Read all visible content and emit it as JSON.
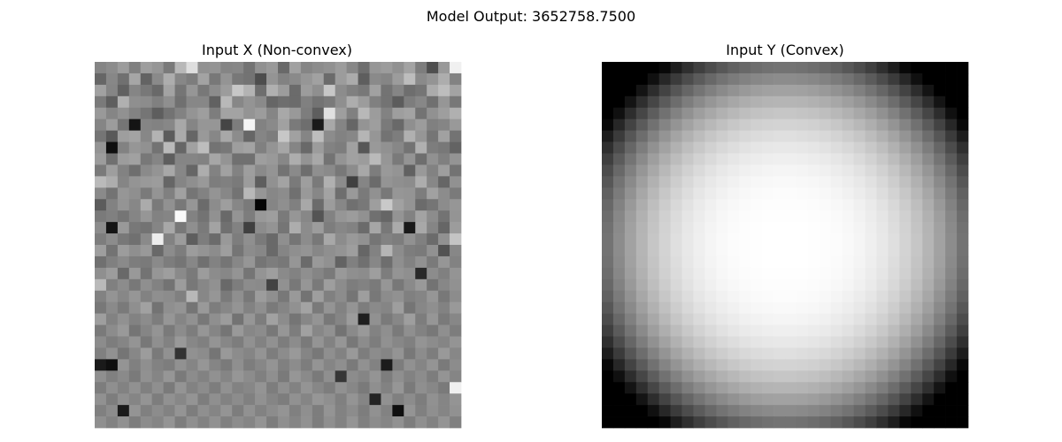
{
  "figure": {
    "suptitle": "Model Output: 3652758.7500"
  },
  "chart_data": [
    {
      "type": "heatmap",
      "title": "Input X (Non-convex)",
      "colormap": "gray",
      "rows": 32,
      "cols": 32,
      "axes_visible": false,
      "value_range": [
        0,
        1
      ],
      "values": [
        [
          0.52,
          0.55,
          0.61,
          0.5,
          0.62,
          0.59,
          0.48,
          0.72,
          0.87,
          0.57,
          0.58,
          0.52,
          0.53,
          0.45,
          0.57,
          0.6,
          0.41,
          0.63,
          0.52,
          0.55,
          0.57,
          0.61,
          0.53,
          0.43,
          0.59,
          0.61,
          0.57,
          0.64,
          0.49,
          0.31,
          0.6,
          0.94
        ],
        [
          0.4,
          0.53,
          0.44,
          0.65,
          0.39,
          0.54,
          0.68,
          0.53,
          0.49,
          0.64,
          0.47,
          0.58,
          0.47,
          0.45,
          0.3,
          0.58,
          0.51,
          0.54,
          0.59,
          0.63,
          0.42,
          0.61,
          0.67,
          0.37,
          0.54,
          0.52,
          0.61,
          0.74,
          0.54,
          0.58,
          0.68,
          0.51
        ],
        [
          0.63,
          0.52,
          0.38,
          0.52,
          0.47,
          0.41,
          0.64,
          0.46,
          0.59,
          0.47,
          0.55,
          0.61,
          0.78,
          0.7,
          0.43,
          0.69,
          0.61,
          0.42,
          0.61,
          0.56,
          0.78,
          0.55,
          0.5,
          0.47,
          0.63,
          0.45,
          0.52,
          0.43,
          0.46,
          0.67,
          0.74,
          0.64
        ],
        [
          0.48,
          0.37,
          0.69,
          0.56,
          0.55,
          0.5,
          0.56,
          0.44,
          0.53,
          0.53,
          0.38,
          0.72,
          0.53,
          0.58,
          0.54,
          0.4,
          0.43,
          0.42,
          0.5,
          0.45,
          0.48,
          0.56,
          0.68,
          0.61,
          0.5,
          0.45,
          0.36,
          0.49,
          0.53,
          0.44,
          0.59,
          0.47
        ],
        [
          0.6,
          0.52,
          0.57,
          0.51,
          0.46,
          0.37,
          0.45,
          0.51,
          0.58,
          0.62,
          0.49,
          0.64,
          0.64,
          0.58,
          0.61,
          0.52,
          0.66,
          0.6,
          0.49,
          0.37,
          0.88,
          0.62,
          0.5,
          0.72,
          0.61,
          0.51,
          0.62,
          0.64,
          0.45,
          0.57,
          0.62,
          0.69
        ],
        [
          0.52,
          0.61,
          0.46,
          0.08,
          0.52,
          0.51,
          0.53,
          0.66,
          0.52,
          0.59,
          0.59,
          0.27,
          0.49,
          0.96,
          0.51,
          0.54,
          0.63,
          0.48,
          0.43,
          0.1,
          0.66,
          0.52,
          0.4,
          0.58,
          0.62,
          0.48,
          0.41,
          0.56,
          0.61,
          0.5,
          0.52,
          0.6
        ],
        [
          0.46,
          0.35,
          0.62,
          0.64,
          0.53,
          0.7,
          0.36,
          0.67,
          0.4,
          0.6,
          0.53,
          0.66,
          0.55,
          0.4,
          0.52,
          0.49,
          0.78,
          0.63,
          0.52,
          0.74,
          0.55,
          0.51,
          0.53,
          0.71,
          0.59,
          0.45,
          0.49,
          0.69,
          0.59,
          0.46,
          0.63,
          0.45
        ],
        [
          0.58,
          0.06,
          0.51,
          0.59,
          0.57,
          0.45,
          0.73,
          0.4,
          0.63,
          0.74,
          0.45,
          0.47,
          0.62,
          0.64,
          0.5,
          0.58,
          0.65,
          0.52,
          0.41,
          0.61,
          0.51,
          0.49,
          0.63,
          0.34,
          0.6,
          0.57,
          0.53,
          0.45,
          0.69,
          0.49,
          0.47,
          0.39
        ],
        [
          0.61,
          0.44,
          0.61,
          0.63,
          0.47,
          0.52,
          0.37,
          0.52,
          0.52,
          0.51,
          0.65,
          0.58,
          0.44,
          0.44,
          0.62,
          0.6,
          0.53,
          0.68,
          0.58,
          0.66,
          0.45,
          0.58,
          0.63,
          0.61,
          0.73,
          0.59,
          0.48,
          0.58,
          0.43,
          0.57,
          0.5,
          0.58
        ],
        [
          0.48,
          0.62,
          0.51,
          0.43,
          0.54,
          0.58,
          0.66,
          0.53,
          0.4,
          0.68,
          0.51,
          0.63,
          0.51,
          0.62,
          0.54,
          0.58,
          0.45,
          0.54,
          0.43,
          0.56,
          0.54,
          0.47,
          0.55,
          0.66,
          0.49,
          0.6,
          0.58,
          0.38,
          0.6,
          0.51,
          0.62,
          0.45
        ],
        [
          0.73,
          0.68,
          0.52,
          0.58,
          0.6,
          0.61,
          0.4,
          0.52,
          0.56,
          0.6,
          0.49,
          0.5,
          0.48,
          0.61,
          0.37,
          0.57,
          0.64,
          0.48,
          0.62,
          0.48,
          0.69,
          0.55,
          0.25,
          0.52,
          0.42,
          0.58,
          0.56,
          0.55,
          0.68,
          0.53,
          0.4,
          0.57
        ],
        [
          0.54,
          0.45,
          0.59,
          0.56,
          0.48,
          0.58,
          0.5,
          0.63,
          0.46,
          0.51,
          0.58,
          0.53,
          0.45,
          0.72,
          0.59,
          0.53,
          0.55,
          0.44,
          0.6,
          0.53,
          0.64,
          0.43,
          0.6,
          0.48,
          0.57,
          0.47,
          0.59,
          0.58,
          0.49,
          0.63,
          0.55,
          0.48
        ],
        [
          0.36,
          0.51,
          0.58,
          0.53,
          0.67,
          0.48,
          0.57,
          0.47,
          0.59,
          0.42,
          0.55,
          0.62,
          0.53,
          0.48,
          0.02,
          0.52,
          0.56,
          0.5,
          0.66,
          0.42,
          0.61,
          0.53,
          0.44,
          0.47,
          0.62,
          0.79,
          0.63,
          0.58,
          0.42,
          0.46,
          0.55,
          0.59
        ],
        [
          0.48,
          0.5,
          0.46,
          0.52,
          0.59,
          0.51,
          0.52,
          0.98,
          0.51,
          0.45,
          0.57,
          0.41,
          0.58,
          0.49,
          0.6,
          0.62,
          0.48,
          0.59,
          0.53,
          0.33,
          0.51,
          0.59,
          0.61,
          0.57,
          0.44,
          0.4,
          0.58,
          0.51,
          0.64,
          0.55,
          0.45,
          0.58
        ],
        [
          0.55,
          0.08,
          0.6,
          0.47,
          0.45,
          0.52,
          0.66,
          0.47,
          0.56,
          0.48,
          0.64,
          0.44,
          0.51,
          0.25,
          0.55,
          0.58,
          0.46,
          0.68,
          0.55,
          0.61,
          0.49,
          0.53,
          0.51,
          0.42,
          0.65,
          0.47,
          0.67,
          0.1,
          0.66,
          0.52,
          0.4,
          0.61
        ],
        [
          0.49,
          0.55,
          0.47,
          0.44,
          0.54,
          0.93,
          0.51,
          0.61,
          0.37,
          0.49,
          0.42,
          0.6,
          0.49,
          0.56,
          0.48,
          0.41,
          0.56,
          0.46,
          0.55,
          0.47,
          0.66,
          0.55,
          0.6,
          0.57,
          0.46,
          0.51,
          0.49,
          0.57,
          0.5,
          0.42,
          0.57,
          0.77
        ],
        [
          0.62,
          0.45,
          0.61,
          0.56,
          0.6,
          0.41,
          0.55,
          0.49,
          0.61,
          0.58,
          0.55,
          0.62,
          0.46,
          0.55,
          0.53,
          0.41,
          0.52,
          0.56,
          0.58,
          0.53,
          0.56,
          0.58,
          0.62,
          0.4,
          0.51,
          0.71,
          0.55,
          0.49,
          0.48,
          0.57,
          0.32,
          0.53
        ],
        [
          0.44,
          0.5,
          0.54,
          0.49,
          0.48,
          0.54,
          0.49,
          0.46,
          0.53,
          0.44,
          0.51,
          0.46,
          0.53,
          0.59,
          0.46,
          0.49,
          0.47,
          0.59,
          0.42,
          0.6,
          0.57,
          0.39,
          0.5,
          0.44,
          0.53,
          0.43,
          0.56,
          0.51,
          0.57,
          0.48,
          0.59,
          0.51
        ],
        [
          0.56,
          0.61,
          0.41,
          0.6,
          0.45,
          0.59,
          0.62,
          0.54,
          0.48,
          0.61,
          0.55,
          0.53,
          0.58,
          0.46,
          0.58,
          0.62,
          0.54,
          0.51,
          0.56,
          0.52,
          0.48,
          0.6,
          0.56,
          0.55,
          0.62,
          0.49,
          0.58,
          0.56,
          0.16,
          0.55,
          0.5,
          0.58
        ],
        [
          0.73,
          0.5,
          0.55,
          0.47,
          0.56,
          0.51,
          0.45,
          0.61,
          0.47,
          0.53,
          0.57,
          0.41,
          0.49,
          0.55,
          0.54,
          0.26,
          0.57,
          0.47,
          0.59,
          0.48,
          0.62,
          0.55,
          0.49,
          0.51,
          0.48,
          0.59,
          0.47,
          0.54,
          0.6,
          0.45,
          0.53,
          0.57
        ],
        [
          0.51,
          0.58,
          0.53,
          0.59,
          0.51,
          0.56,
          0.55,
          0.5,
          0.72,
          0.53,
          0.59,
          0.48,
          0.56,
          0.47,
          0.61,
          0.56,
          0.47,
          0.6,
          0.45,
          0.62,
          0.5,
          0.55,
          0.46,
          0.62,
          0.47,
          0.55,
          0.57,
          0.5,
          0.52,
          0.59,
          0.47,
          0.55
        ],
        [
          0.47,
          0.54,
          0.48,
          0.56,
          0.63,
          0.45,
          0.56,
          0.58,
          0.46,
          0.6,
          0.49,
          0.53,
          0.58,
          0.51,
          0.56,
          0.48,
          0.52,
          0.57,
          0.64,
          0.48,
          0.58,
          0.51,
          0.58,
          0.49,
          0.54,
          0.52,
          0.62,
          0.46,
          0.53,
          0.56,
          0.51,
          0.6
        ],
        [
          0.62,
          0.51,
          0.57,
          0.51,
          0.55,
          0.49,
          0.59,
          0.52,
          0.57,
          0.47,
          0.56,
          0.61,
          0.45,
          0.59,
          0.49,
          0.63,
          0.55,
          0.46,
          0.53,
          0.58,
          0.47,
          0.52,
          0.61,
          0.12,
          0.57,
          0.48,
          0.53,
          0.62,
          0.49,
          0.59,
          0.48,
          0.53
        ],
        [
          0.48,
          0.55,
          0.6,
          0.46,
          0.52,
          0.58,
          0.48,
          0.55,
          0.49,
          0.59,
          0.52,
          0.46,
          0.6,
          0.53,
          0.55,
          0.47,
          0.59,
          0.49,
          0.63,
          0.53,
          0.57,
          0.45,
          0.54,
          0.6,
          0.51,
          0.56,
          0.48,
          0.56,
          0.51,
          0.47,
          0.56,
          0.49
        ],
        [
          0.55,
          0.49,
          0.52,
          0.58,
          0.47,
          0.56,
          0.51,
          0.6,
          0.53,
          0.5,
          0.58,
          0.53,
          0.49,
          0.57,
          0.51,
          0.57,
          0.49,
          0.55,
          0.48,
          0.58,
          0.51,
          0.59,
          0.47,
          0.55,
          0.49,
          0.57,
          0.53,
          0.5,
          0.58,
          0.55,
          0.52,
          0.58
        ],
        [
          0.5,
          0.57,
          0.46,
          0.53,
          0.61,
          0.48,
          0.57,
          0.2,
          0.57,
          0.55,
          0.46,
          0.6,
          0.55,
          0.52,
          0.58,
          0.49,
          0.55,
          0.6,
          0.52,
          0.47,
          0.56,
          0.51,
          0.6,
          0.49,
          0.55,
          0.52,
          0.58,
          0.47,
          0.55,
          0.49,
          0.6,
          0.53
        ],
        [
          0.1,
          0.06,
          0.58,
          0.5,
          0.56,
          0.51,
          0.49,
          0.57,
          0.52,
          0.59,
          0.52,
          0.48,
          0.56,
          0.49,
          0.53,
          0.58,
          0.5,
          0.55,
          0.49,
          0.58,
          0.52,
          0.56,
          0.48,
          0.57,
          0.51,
          0.11,
          0.49,
          0.57,
          0.52,
          0.58,
          0.48,
          0.55
        ],
        [
          0.56,
          0.5,
          0.54,
          0.48,
          0.57,
          0.52,
          0.59,
          0.48,
          0.55,
          0.51,
          0.57,
          0.52,
          0.59,
          0.55,
          0.5,
          0.56,
          0.48,
          0.59,
          0.54,
          0.48,
          0.56,
          0.21,
          0.55,
          0.52,
          0.58,
          0.49,
          0.56,
          0.51,
          0.55,
          0.49,
          0.58,
          0.52
        ],
        [
          0.49,
          0.56,
          0.51,
          0.57,
          0.5,
          0.56,
          0.48,
          0.58,
          0.51,
          0.55,
          0.49,
          0.57,
          0.51,
          0.53,
          0.58,
          0.49,
          0.56,
          0.51,
          0.58,
          0.53,
          0.49,
          0.57,
          0.53,
          0.48,
          0.56,
          0.51,
          0.59,
          0.48,
          0.56,
          0.53,
          0.48,
          0.94
        ],
        [
          0.57,
          0.49,
          0.56,
          0.52,
          0.58,
          0.49,
          0.57,
          0.53,
          0.58,
          0.49,
          0.56,
          0.51,
          0.55,
          0.5,
          0.57,
          0.52,
          0.49,
          0.57,
          0.52,
          0.59,
          0.56,
          0.5,
          0.58,
          0.52,
          0.14,
          0.57,
          0.5,
          0.55,
          0.49,
          0.57,
          0.52,
          0.58
        ],
        [
          0.5,
          0.55,
          0.1,
          0.58,
          0.5,
          0.55,
          0.51,
          0.58,
          0.49,
          0.56,
          0.52,
          0.58,
          0.49,
          0.57,
          0.51,
          0.55,
          0.58,
          0.5,
          0.56,
          0.49,
          0.58,
          0.51,
          0.55,
          0.49,
          0.57,
          0.51,
          0.06,
          0.58,
          0.5,
          0.56,
          0.52,
          0.57
        ],
        [
          0.56,
          0.51,
          0.57,
          0.49,
          0.55,
          0.52,
          0.58,
          0.49,
          0.56,
          0.51,
          0.57,
          0.5,
          0.55,
          0.52,
          0.58,
          0.49,
          0.56,
          0.52,
          0.57,
          0.49,
          0.56,
          0.51,
          0.58,
          0.5,
          0.55,
          0.52,
          0.57,
          0.49,
          0.56,
          0.51,
          0.58,
          0.5
        ]
      ]
    },
    {
      "type": "heatmap",
      "title": "Input Y (Convex)",
      "colormap": "gray",
      "rows": 32,
      "cols": 32,
      "axes_visible": false,
      "function": "radial",
      "formula": "value = clip(1 - 0.55 * r^3, 0, 1), r = distance from center normalized so that r=1 at edge midpoint"
    }
  ]
}
